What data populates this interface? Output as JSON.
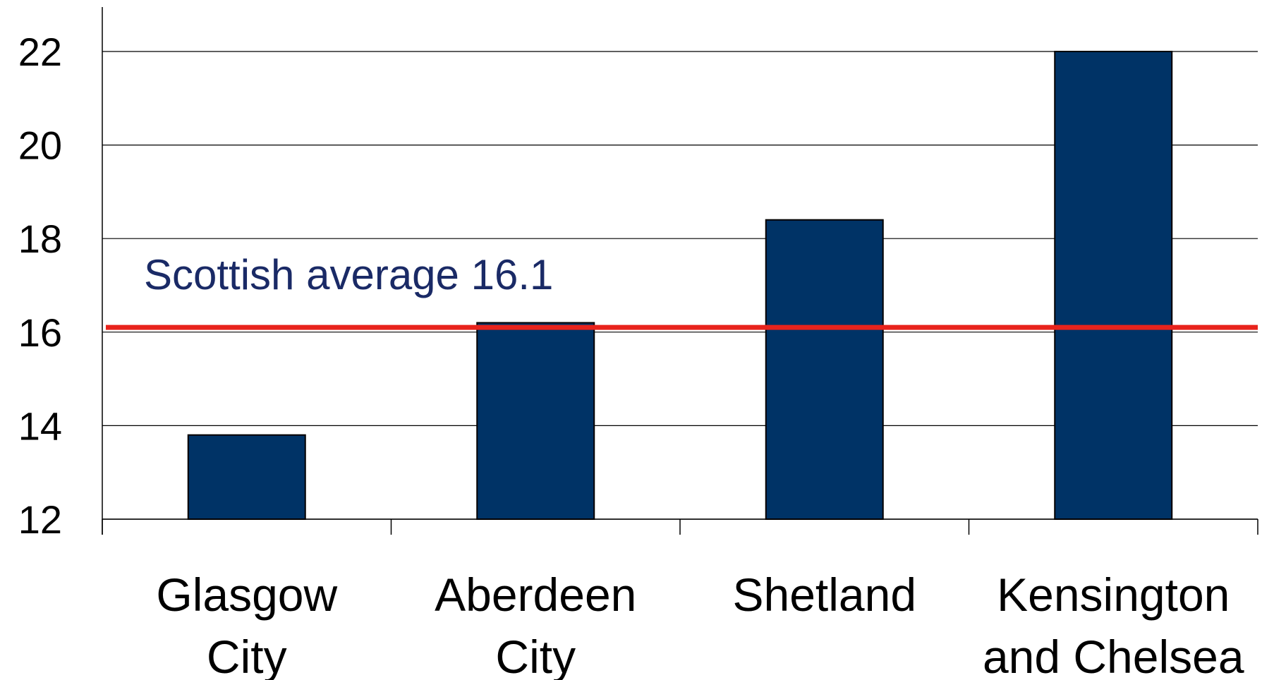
{
  "chart_data": {
    "type": "bar",
    "title": "",
    "xlabel": "",
    "ylabel": "",
    "categories": [
      [
        "Glasgow",
        "City"
      ],
      [
        "Aberdeen",
        "City"
      ],
      [
        "Shetland"
      ],
      [
        "Kensington",
        "and Chelsea"
      ]
    ],
    "values": [
      13.8,
      16.2,
      18.4,
      22.0
    ],
    "ylim": [
      12,
      23
    ],
    "yticks": [
      "12",
      "14",
      "16",
      "18",
      "20",
      "22"
    ],
    "grid": true,
    "bar_color": "#003366",
    "reference_line": {
      "value": 16.1,
      "label": "Scottish average 16.1",
      "color": "#e8231c",
      "label_color": "#1a2a66"
    }
  }
}
